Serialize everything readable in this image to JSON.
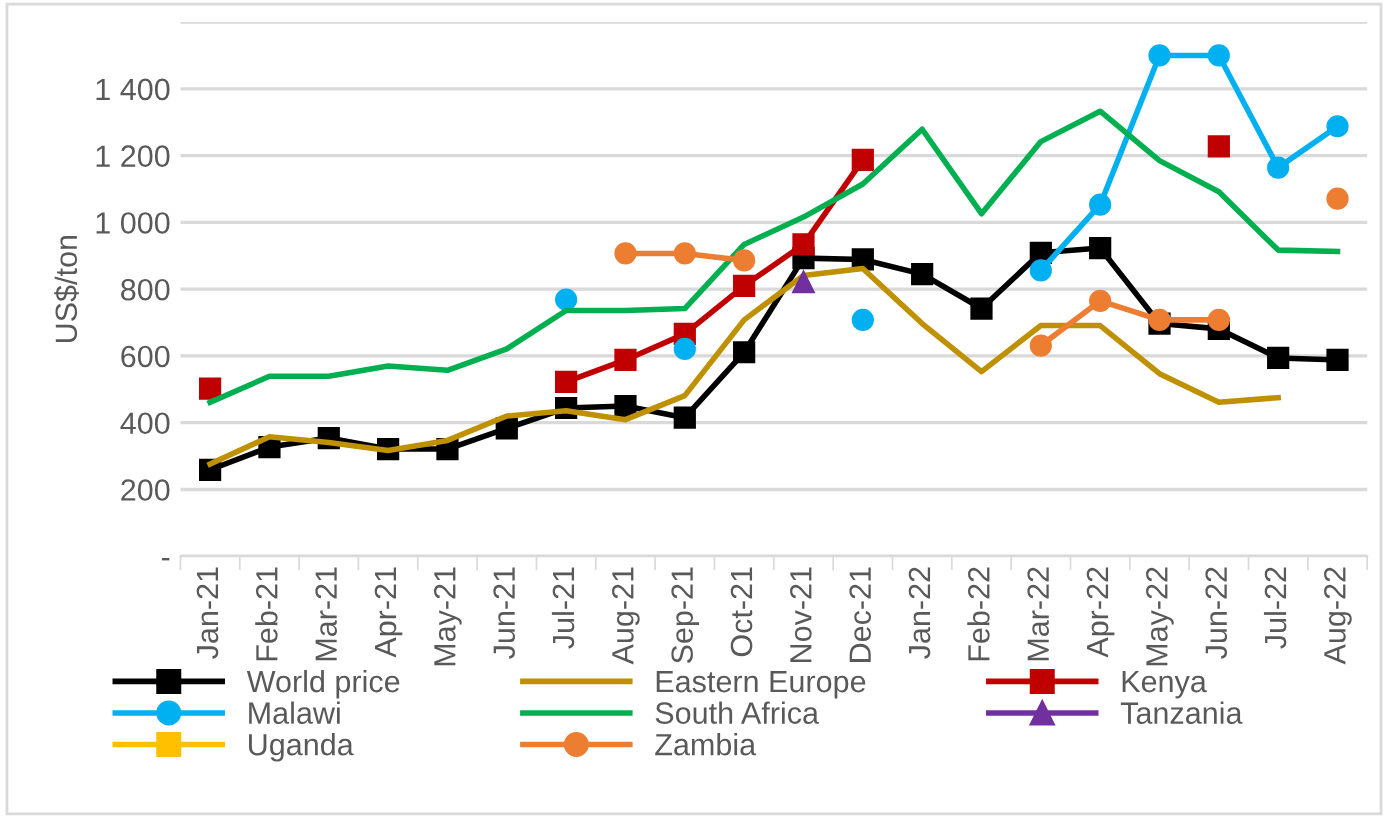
{
  "chart_data": {
    "type": "line",
    "ylabel": "US$/ton",
    "categories": [
      "Jan-21",
      "Feb-21",
      "Mar-21",
      "Apr-21",
      "May-21",
      "Jun-21",
      "Jul-21",
      "Aug-21",
      "Sep-21",
      "Oct-21",
      "Nov-21",
      "Dec-21",
      "Jan-22",
      "Feb-22",
      "Mar-22",
      "Apr-22",
      "May-22",
      "Jun-22",
      "Jul-22",
      "Aug-22"
    ],
    "ylim": [
      0,
      1600
    ],
    "yticks": [
      {
        "value": 0,
        "label": "-"
      },
      200,
      400,
      600,
      800,
      {
        "value": 1000,
        "label": "1 000"
      },
      {
        "value": 1200,
        "label": "1 200"
      },
      {
        "value": 1400,
        "label": "1 400"
      },
      {
        "value": 1600,
        "label": null
      }
    ],
    "grid": "y",
    "legend": "bottom",
    "series": [
      {
        "name": "World price",
        "color": "#000000",
        "marker": "square",
        "values": [
          259,
          327,
          354,
          321,
          321,
          383,
          444,
          450,
          415,
          611,
          893,
          889,
          845,
          742,
          909,
          923,
          697,
          681,
          594,
          588
        ]
      },
      {
        "name": "Eastern Europe",
        "color": "#bf9000",
        "marker": "none",
        "values": [
          276,
          358,
          341,
          317,
          347,
          420,
          436,
          409,
          481,
          708,
          841,
          862,
          697,
          553,
          691,
          691,
          547,
          461,
          475,
          null
        ]
      },
      {
        "name": "Kenya",
        "color": "#c00000",
        "marker": "square",
        "values": [
          502,
          null,
          null,
          null,
          null,
          null,
          522,
          588,
          666,
          810,
          934,
          1187,
          null,
          null,
          null,
          null,
          null,
          1228,
          null,
          null
        ]
      },
      {
        "name": "Malawi",
        "color": "#00b0f0",
        "marker": "circle",
        "values": [
          null,
          null,
          null,
          null,
          null,
          null,
          769,
          null,
          621,
          null,
          null,
          708,
          null,
          null,
          856,
          1053,
          1500,
          1500,
          1164,
          1288
        ]
      },
      {
        "name": "South Africa",
        "color": "#00b050",
        "marker": "none",
        "values": [
          461,
          539,
          539,
          570,
          557,
          621,
          736,
          736,
          742,
          934,
          1016,
          1115,
          1279,
          1026,
          1242,
          1333,
          1185,
          1092,
          917,
          913
        ]
      },
      {
        "name": "Tanzania",
        "color": "#7030a0",
        "marker": "triangle",
        "values": [
          null,
          null,
          null,
          null,
          null,
          null,
          null,
          null,
          null,
          null,
          821,
          null,
          null,
          null,
          null,
          null,
          null,
          null,
          null,
          null
        ]
      },
      {
        "name": "Uganda",
        "color": "#ffc000",
        "marker": "square",
        "values": [
          null,
          null,
          null,
          null,
          null,
          null,
          null,
          null,
          null,
          null,
          null,
          null,
          null,
          null,
          null,
          null,
          null,
          null,
          null,
          null
        ]
      },
      {
        "name": "Zambia",
        "color": "#ed7d31",
        "marker": "circle",
        "values": [
          null,
          null,
          null,
          null,
          null,
          null,
          null,
          907,
          907,
          886,
          null,
          null,
          null,
          null,
          631,
          765,
          708,
          708,
          null,
          1071
        ]
      }
    ]
  }
}
